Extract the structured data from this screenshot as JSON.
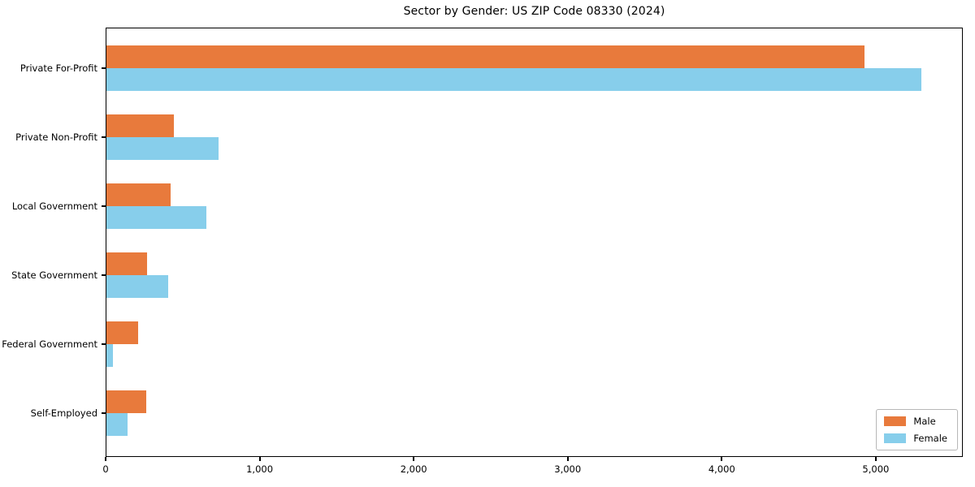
{
  "title": "Sector by Gender: US ZIP Code 08330 (2024)",
  "chart_data": {
    "type": "bar",
    "orientation": "horizontal",
    "title": "Sector by Gender: US ZIP Code 08330 (2024)",
    "categories": [
      "Private For-Profit",
      "Private Non-Profit",
      "Local Government",
      "State Government",
      "Federal Government",
      "Self-Employed"
    ],
    "series": [
      {
        "name": "Male",
        "color": "#E87A3C",
        "values": [
          4930,
          440,
          415,
          265,
          205,
          260
        ]
      },
      {
        "name": "Female",
        "color": "#87CEEB",
        "values": [
          5300,
          730,
          650,
          400,
          42,
          137
        ]
      }
    ],
    "xlabel": "",
    "ylabel": "",
    "xlim": [
      0,
      5565
    ],
    "x_ticks": [
      0,
      1000,
      2000,
      3000,
      4000,
      5000
    ],
    "x_tick_labels": [
      "0",
      "1,000",
      "2,000",
      "3,000",
      "4,000",
      "5,000"
    ],
    "grid": false,
    "legend": {
      "position": "lower right",
      "entries": [
        "Male",
        "Female"
      ]
    },
    "colors": {
      "axis": "#000000",
      "background": "#ffffff"
    }
  }
}
